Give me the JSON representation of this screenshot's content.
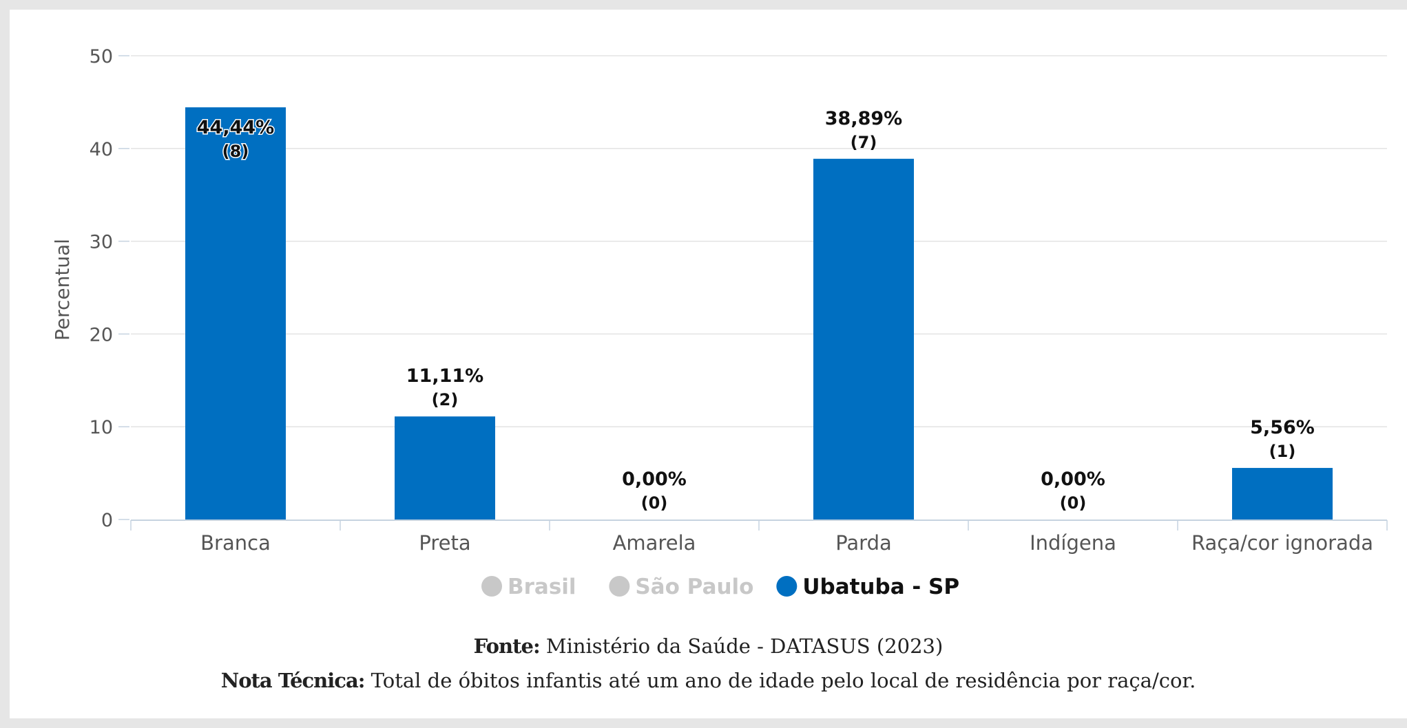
{
  "chart_data": {
    "type": "bar",
    "ylabel": "Percentual",
    "ylim": [
      0,
      50
    ],
    "yticks": [
      0,
      10,
      20,
      30,
      40,
      50
    ],
    "grid": true,
    "categories": [
      "Branca",
      "Preta",
      "Amarela",
      "Parda",
      "Indígena",
      "Raça/cor ignorada"
    ],
    "series": [
      {
        "name": "Ubatuba - SP",
        "color": "#006fc1",
        "values": [
          44.44,
          11.11,
          0.0,
          38.89,
          0.0,
          5.56
        ],
        "labels": [
          "44,44%",
          "11,11%",
          "0,00%",
          "38,89%",
          "0,00%",
          "5,56%"
        ],
        "counts": [
          "(8)",
          "(2)",
          "(0)",
          "(7)",
          "(0)",
          "(1)"
        ]
      }
    ],
    "legend": {
      "position": "bottom",
      "items": [
        {
          "name": "Brasil",
          "color": "#c8c8c8",
          "active": false
        },
        {
          "name": "São Paulo",
          "color": "#c8c8c8",
          "active": false
        },
        {
          "name": "Ubatuba - SP",
          "color": "#006fc1",
          "active": true
        }
      ]
    }
  },
  "footer": {
    "fonte_label": "Fonte:",
    "fonte_text": "Ministério da Saúde - DATASUS (2023)",
    "nota_label": "Nota Técnica:",
    "nota_text": "Total de óbitos infantis até um ano de idade pelo local de residência por raça/cor."
  }
}
